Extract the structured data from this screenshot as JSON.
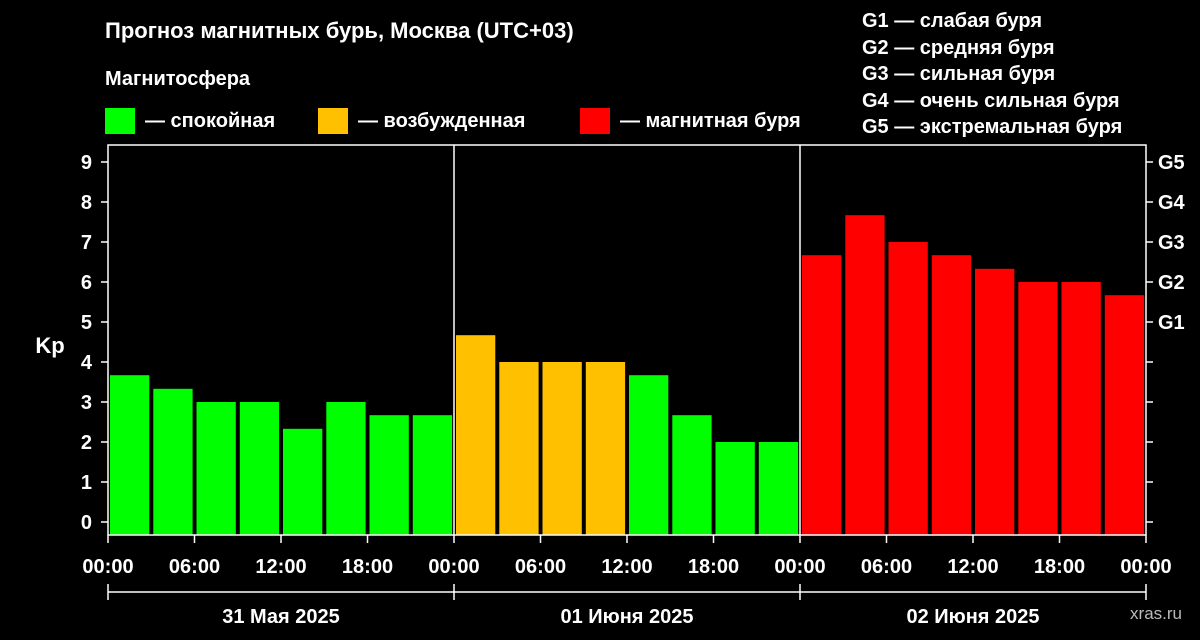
{
  "header": {
    "title": "Прогноз магнитных бурь, Москва (UTC+03)",
    "subtitle": "Магнитосфера"
  },
  "legend": [
    {
      "label": "— спокойная",
      "color": "#00ff00"
    },
    {
      "label": "— возбужденная",
      "color": "#ffc000"
    },
    {
      "label": "— магнитная буря",
      "color": "#ff0000"
    }
  ],
  "storm_scale": [
    "G1 — слабая буря",
    "G2 — средняя буря",
    "G3 — сильная буря",
    "G4 — очень сильная буря",
    "G5 — экстремальная буря"
  ],
  "watermark": "xras.ru",
  "chart_data": {
    "type": "bar",
    "ylabel": "Kp",
    "ylim": [
      0,
      9
    ],
    "yticks": [
      "0",
      "1",
      "2",
      "3",
      "4",
      "5",
      "6",
      "7",
      "8",
      "9"
    ],
    "right_ticks": [
      {
        "label": "G1",
        "value": 5
      },
      {
        "label": "G2",
        "value": 6
      },
      {
        "label": "G3",
        "value": 7
      },
      {
        "label": "G4",
        "value": 8
      },
      {
        "label": "G5",
        "value": 9
      }
    ],
    "x_tick_labels": [
      "00:00",
      "06:00",
      "12:00",
      "18:00",
      "00:00",
      "06:00",
      "12:00",
      "18:00",
      "00:00",
      "06:00",
      "12:00",
      "18:00",
      "00:00"
    ],
    "days": [
      {
        "label": "31 Мая 2025",
        "values": [
          3.67,
          3.33,
          3.0,
          3.0,
          2.33,
          3.0,
          2.67,
          2.67
        ]
      },
      {
        "label": "01 Июня 2025",
        "values": [
          4.67,
          4.0,
          4.0,
          4.0,
          3.67,
          2.67,
          2.0,
          2.0
        ]
      },
      {
        "label": "02 Июня 2025",
        "values": [
          6.67,
          7.67,
          7.0,
          6.67,
          6.33,
          6.0,
          6.0,
          5.67
        ]
      }
    ],
    "colors": {
      "quiet": "#00ff00",
      "active": "#ffc000",
      "storm": "#ff0000"
    },
    "thresholds": {
      "active": 4,
      "storm": 5
    },
    "grid": false
  }
}
